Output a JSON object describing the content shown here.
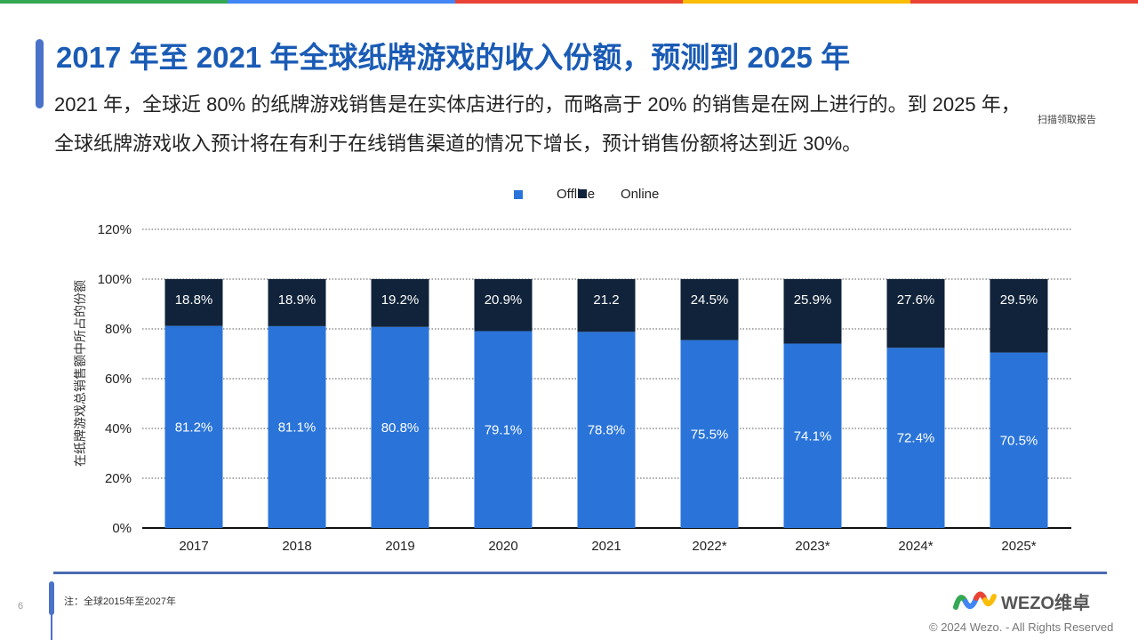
{
  "header": {
    "title": "2017 年至 2021 年全球纸牌游戏的收入份额，预测到 2025 年",
    "subtitle": "2021 年，全球近 80% 的纸牌游戏销售是在实体店进行的，而略高于 20% 的销售是在网上进行的。到 2025 年，全球纸牌游戏收入预计将在有利于在线销售渠道的情况下增长，预计销售份额将达到近 30%。",
    "scan_link": "扫描领取报告"
  },
  "chart_data": {
    "type": "bar",
    "stacked": true,
    "categories": [
      "2017",
      "2018",
      "2019",
      "2020",
      "2021",
      "2022*",
      "2023*",
      "2024*",
      "2025*"
    ],
    "series": [
      {
        "name": "Offline",
        "color": "#2a74d9",
        "values": [
          81.2,
          81.1,
          80.8,
          79.1,
          78.8,
          75.5,
          74.1,
          72.4,
          70.5
        ],
        "labels": [
          "81.2%",
          "81.1%",
          "80.8%",
          "79.1%",
          "78.8%",
          "75.5%",
          "74.1%",
          "72.4%",
          "70.5%"
        ]
      },
      {
        "name": "Online",
        "color": "#10233a",
        "values": [
          18.8,
          18.9,
          19.2,
          20.9,
          21.2,
          24.5,
          25.9,
          27.6,
          29.5
        ],
        "labels": [
          "18.8%",
          "18.9%",
          "19.2%",
          "20.9%",
          "21.2",
          "24.5%",
          "25.9%",
          "27.6%",
          "29.5%"
        ]
      }
    ],
    "ylabel": "在纸牌游戏总销售额中所占的份额",
    "yticks": [
      "0%",
      "20%",
      "40%",
      "60%",
      "80%",
      "100%",
      "120%"
    ],
    "ylim": [
      0,
      120
    ],
    "grid": true,
    "legend": "top"
  },
  "footer": {
    "page_number": "6",
    "note": "注：全球2015年至2027年",
    "logo_text": "WEZO维卓",
    "copyright": "© 2024 Wezo. - All Rights Reserved"
  },
  "colors": {
    "title": "#1a5bb5",
    "accent": "#4a72c8",
    "top_bar": [
      "#34a853",
      "#4285f4",
      "#ea4335",
      "#fbbc05"
    ]
  }
}
